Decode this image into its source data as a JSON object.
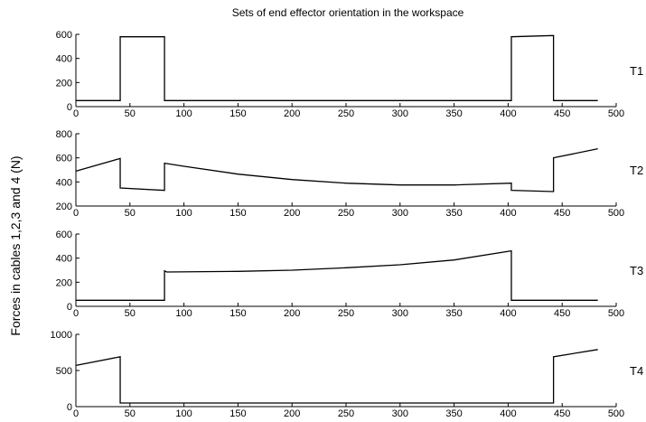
{
  "chart_data": {
    "type": "line",
    "title": "Sets of end effector orientation in the workspace",
    "ylabel": "Forces in cables 1,2,3 and 4 (N)",
    "xlabel": "",
    "xlim": [
      0,
      500
    ],
    "xticks": [
      0,
      50,
      100,
      150,
      200,
      250,
      300,
      350,
      400,
      450,
      500
    ],
    "grid": false,
    "line_color": "#000000",
    "panels": [
      {
        "name": "T1",
        "ylim": [
          0,
          600
        ],
        "yticks": [
          0,
          200,
          400,
          600
        ],
        "points": [
          [
            0,
            50
          ],
          [
            41,
            50
          ],
          [
            41,
            580
          ],
          [
            82,
            580
          ],
          [
            82,
            50
          ],
          [
            403,
            50
          ],
          [
            403,
            580
          ],
          [
            442,
            590
          ],
          [
            442,
            50
          ],
          [
            483,
            50
          ]
        ]
      },
      {
        "name": "T2",
        "ylim": [
          200,
          800
        ],
        "yticks": [
          200,
          400,
          600,
          800
        ],
        "points": [
          [
            0,
            490
          ],
          [
            41,
            595
          ],
          [
            41,
            350
          ],
          [
            82,
            330
          ],
          [
            82,
            555
          ],
          [
            100,
            530
          ],
          [
            150,
            465
          ],
          [
            200,
            420
          ],
          [
            250,
            390
          ],
          [
            300,
            375
          ],
          [
            350,
            375
          ],
          [
            403,
            390
          ],
          [
            403,
            330
          ],
          [
            442,
            320
          ],
          [
            442,
            600
          ],
          [
            483,
            675
          ]
        ]
      },
      {
        "name": "T3",
        "ylim": [
          0,
          600
        ],
        "yticks": [
          0,
          200,
          400,
          600
        ],
        "points": [
          [
            0,
            50
          ],
          [
            82,
            50
          ],
          [
            82,
            295
          ],
          [
            84,
            285
          ],
          [
            150,
            290
          ],
          [
            200,
            300
          ],
          [
            250,
            320
          ],
          [
            300,
            345
          ],
          [
            350,
            385
          ],
          [
            403,
            460
          ],
          [
            403,
            50
          ],
          [
            483,
            50
          ]
        ]
      },
      {
        "name": "T4",
        "ylim": [
          0,
          1000
        ],
        "yticks": [
          0,
          500,
          1000
        ],
        "points": [
          [
            0,
            570
          ],
          [
            41,
            690
          ],
          [
            41,
            50
          ],
          [
            442,
            50
          ],
          [
            442,
            690
          ],
          [
            483,
            790
          ]
        ]
      }
    ]
  }
}
